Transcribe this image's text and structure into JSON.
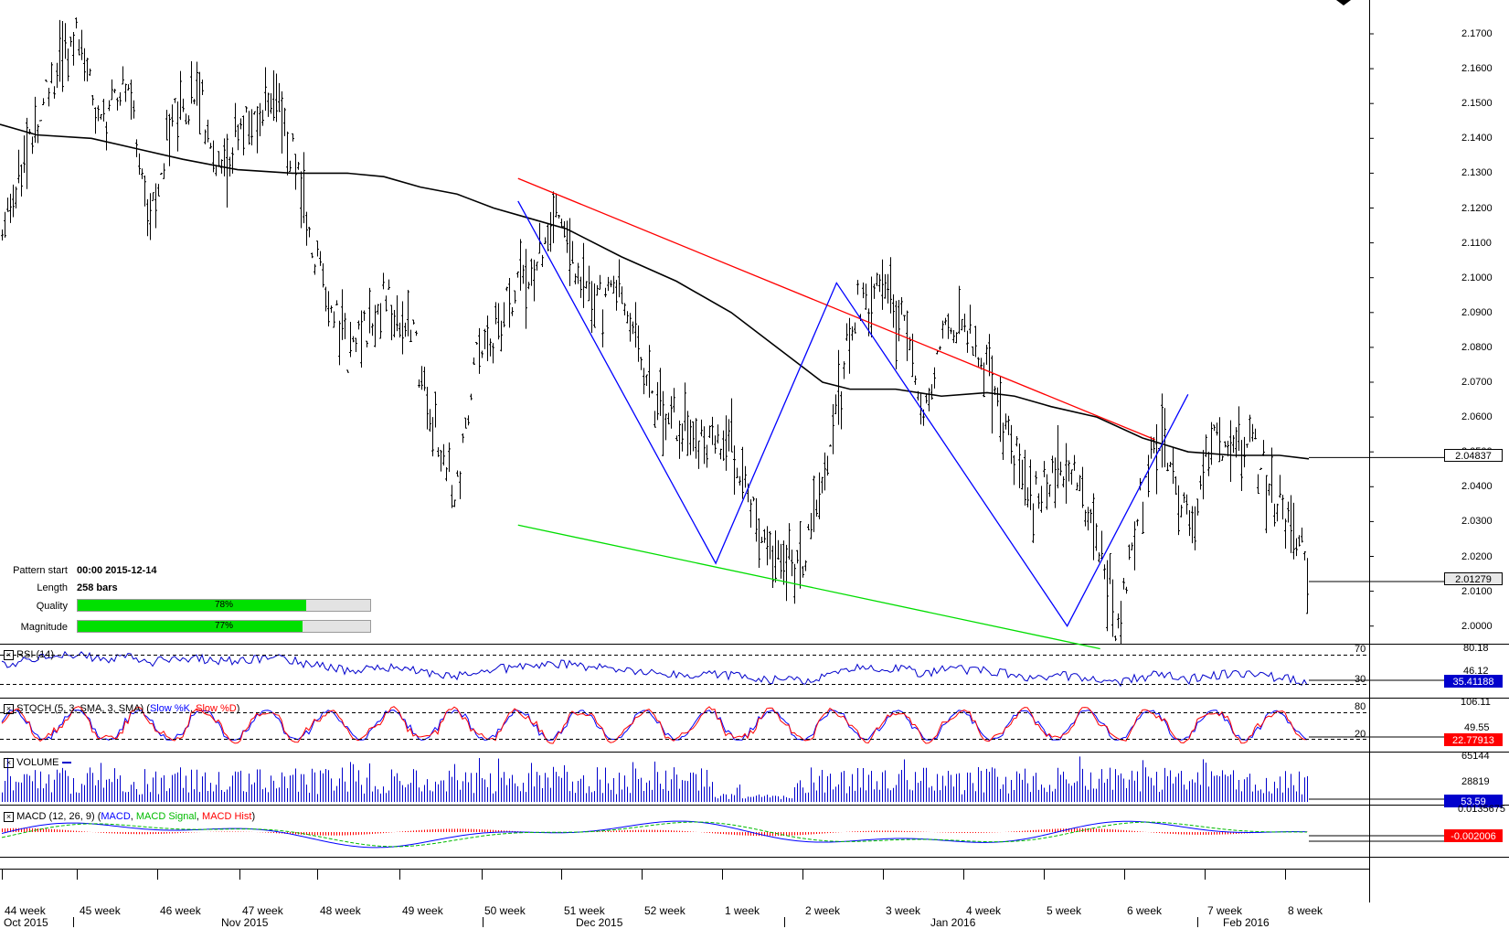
{
  "pattern_info": {
    "start_label": "Pattern start",
    "start_value": "00:00 2015-12-14",
    "length_label": "Length",
    "length_value": "258 bars",
    "quality_label": "Quality",
    "quality_value": "78%",
    "quality_fraction": 0.78,
    "magnitude_label": "Magnitude",
    "magnitude_value": "77%",
    "magnitude_fraction": 0.77
  },
  "price_axis": {
    "ticks": [
      "2.1700",
      "2.1600",
      "2.1500",
      "2.1400",
      "2.1300",
      "2.1200",
      "2.1100",
      "2.1000",
      "2.0900",
      "2.0800",
      "2.0700",
      "2.0600",
      "2.0500",
      "2.0400",
      "2.0300",
      "2.0200",
      "2.0100",
      "2.0000"
    ],
    "ma_tag": "2.04837",
    "price_tag": "2.01279"
  },
  "rsi": {
    "title": "RSI (14)",
    "upper": "70",
    "lower": "30",
    "scale_top": "80.18",
    "scale_mid": "46.12",
    "value_tag": "35.41188"
  },
  "stoch": {
    "title": "STOCH (5, 3, SMA, 3, SMA)",
    "k_label": "Slow %K",
    "d_label": "Slow %D",
    "upper": "80",
    "lower": "20",
    "scale_top": "106.11",
    "scale_mid": "49.55",
    "value_tag": "22.77913"
  },
  "volume": {
    "title": "VOLUME",
    "scale_top": "65144",
    "scale_mid": "28819",
    "value_tag": "53.59"
  },
  "macd": {
    "title_prefix": "MACD (12, 26, 9) (",
    "macd_label": "MACD",
    "signal_label": "MACD Signal",
    "hist_label": "MACD Hist",
    "title_suffix": ")",
    "scale_top": "0.0135675",
    "value_tag": "-0.002006"
  },
  "x_axis": {
    "weeks": [
      "44 week",
      "45 week",
      "46 week",
      "47 week",
      "48 week",
      "49 week",
      "50 week",
      "51 week",
      "52 week",
      "1 week",
      "2 week",
      "3 week",
      "4 week",
      "5 week",
      "6 week",
      "7 week",
      "8 week"
    ],
    "months": [
      "Oct 2015",
      "Nov 2015",
      "Dec 2015",
      "Jan 2016",
      "Feb 2016"
    ]
  },
  "colors": {
    "resistance": "#ff0000",
    "support": "#00dd00",
    "zigzag": "#0000ff",
    "ma": "#000000",
    "price": "#000000",
    "rsi": "#0000cc",
    "stoch_k": "#0000ff",
    "stoch_d": "#ff0000",
    "volume": "#0000cc",
    "macd": "#0000ff",
    "signal": "#00bb00",
    "hist": "#ff0000"
  },
  "chart_data": {
    "type": "line",
    "series": [
      {
        "name": "Resistance",
        "x": [
          "2015-12-14",
          "2016-02-10"
        ],
        "y": [
          2.1285,
          2.0535
        ]
      },
      {
        "name": "Support",
        "x": [
          "2015-12-14",
          "2016-02-05"
        ],
        "y": [
          2.029,
          1.9935
        ]
      },
      {
        "name": "Zigzag",
        "x": [
          "2015-12-14",
          "2016-01-01",
          "2016-01-12",
          "2016-02-02",
          "2016-02-13"
        ],
        "y": [
          2.122,
          2.018,
          2.0985,
          2.0,
          2.0665
        ]
      }
    ],
    "ylim": [
      1.9945,
      2.175
    ]
  }
}
